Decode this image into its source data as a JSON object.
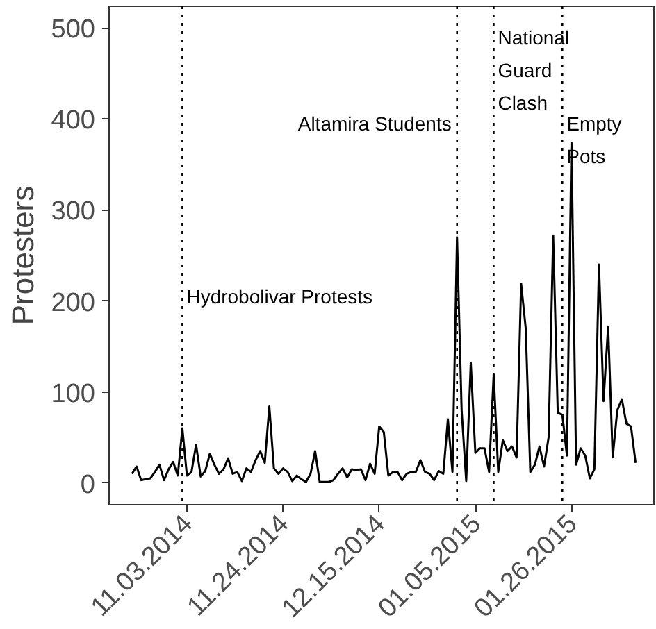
{
  "chart_data": {
    "type": "line",
    "ylabel": "Protesters",
    "color": "#000000",
    "grid": false,
    "line_style": "solid",
    "marker": "none",
    "x": [
      "2014-10-22",
      "2014-10-23",
      "2014-10-24",
      "2014-10-25",
      "2014-10-26",
      "2014-10-27",
      "2014-10-28",
      "2014-10-29",
      "2014-10-30",
      "2014-10-31",
      "2014-11-01",
      "2014-11-02",
      "2014-11-03",
      "2014-11-04",
      "2014-11-05",
      "2014-11-06",
      "2014-11-07",
      "2014-11-08",
      "2014-11-09",
      "2014-11-10",
      "2014-11-11",
      "2014-11-12",
      "2014-11-13",
      "2014-11-14",
      "2014-11-15",
      "2014-11-16",
      "2014-11-17",
      "2014-11-18",
      "2014-11-19",
      "2014-11-20",
      "2014-11-21",
      "2014-11-22",
      "2014-11-23",
      "2014-11-24",
      "2014-11-25",
      "2014-11-26",
      "2014-11-27",
      "2014-11-28",
      "2014-11-29",
      "2014-11-30",
      "2014-12-01",
      "2014-12-02",
      "2014-12-03",
      "2014-12-04",
      "2014-12-05",
      "2014-12-06",
      "2014-12-07",
      "2014-12-08",
      "2014-12-09",
      "2014-12-10",
      "2014-12-11",
      "2014-12-12",
      "2014-12-13",
      "2014-12-14",
      "2014-12-15",
      "2014-12-16",
      "2014-12-17",
      "2014-12-18",
      "2014-12-19",
      "2014-12-20",
      "2014-12-21",
      "2014-12-22",
      "2014-12-23",
      "2014-12-24",
      "2014-12-25",
      "2014-12-26",
      "2014-12-27",
      "2014-12-28",
      "2014-12-29",
      "2014-12-30",
      "2014-12-31",
      "2015-01-01",
      "2015-01-02",
      "2015-01-03",
      "2015-01-04",
      "2015-01-05",
      "2015-01-06",
      "2015-01-07",
      "2015-01-08",
      "2015-01-09",
      "2015-01-10",
      "2015-01-11",
      "2015-01-12",
      "2015-01-13",
      "2015-01-14",
      "2015-01-15",
      "2015-01-16",
      "2015-01-17",
      "2015-01-18",
      "2015-01-19",
      "2015-01-20",
      "2015-01-21",
      "2015-01-22",
      "2015-01-23",
      "2015-01-24",
      "2015-01-25",
      "2015-01-26",
      "2015-01-27",
      "2015-01-28",
      "2015-01-29",
      "2015-01-30",
      "2015-01-31",
      "2015-02-01",
      "2015-02-02",
      "2015-02-03",
      "2015-02-04",
      "2015-02-05",
      "2015-02-06",
      "2015-02-07",
      "2015-02-08",
      "2015-02-09"
    ],
    "values": [
      10,
      18,
      3,
      4,
      5,
      12,
      20,
      3,
      15,
      23,
      8,
      60,
      8,
      12,
      42,
      7,
      13,
      32,
      20,
      10,
      15,
      27,
      10,
      12,
      2,
      16,
      12,
      25,
      35,
      22,
      84,
      16,
      10,
      16,
      12,
      2,
      8,
      4,
      1,
      10,
      35,
      1,
      1,
      1,
      3,
      10,
      16,
      6,
      15,
      14,
      15,
      3,
      21,
      10,
      62,
      56,
      8,
      12,
      12,
      3,
      10,
      12,
      12,
      25,
      12,
      10,
      3,
      13,
      10,
      70,
      12,
      270,
      80,
      2,
      132,
      33,
      38,
      38,
      12,
      119,
      12,
      47,
      35,
      40,
      28,
      219,
      170,
      12,
      20,
      40,
      18,
      50,
      272,
      77,
      75,
      30,
      374,
      20,
      38,
      30,
      5,
      15,
      240,
      90,
      172,
      28,
      80,
      92,
      65,
      62,
      22
    ],
    "xlim": [
      "2014-10-17",
      "2015-02-13"
    ],
    "xticks": [
      {
        "value": "2014-11-03",
        "label": "11.03.2014"
      },
      {
        "value": "2014-11-24",
        "label": "11.24.2014"
      },
      {
        "value": "2014-12-15",
        "label": "12.15.2014"
      },
      {
        "value": "2015-01-05",
        "label": "01.05.2015"
      },
      {
        "value": "2015-01-26",
        "label": "01.26.2015"
      }
    ],
    "ylim": [
      -24,
      524
    ],
    "yticks": [
      0,
      100,
      200,
      300,
      400,
      500
    ],
    "ref_lines": [
      {
        "axis": "x",
        "value": "2014-11-02",
        "label": "Hydrobolivar Protests",
        "line_style": "dotted",
        "color": "#000000"
      },
      {
        "axis": "x",
        "value": "2015-01-01",
        "label": "Altamira Students",
        "line_style": "dotted",
        "color": "#000000"
      },
      {
        "axis": "x",
        "value": "2015-01-09",
        "label": "National\nGuard\nClash",
        "line_style": "dotted",
        "color": "#000000"
      },
      {
        "axis": "x",
        "value": "2015-01-24",
        "label": "Empty\nPots",
        "line_style": "dotted",
        "color": "#000000"
      }
    ]
  }
}
